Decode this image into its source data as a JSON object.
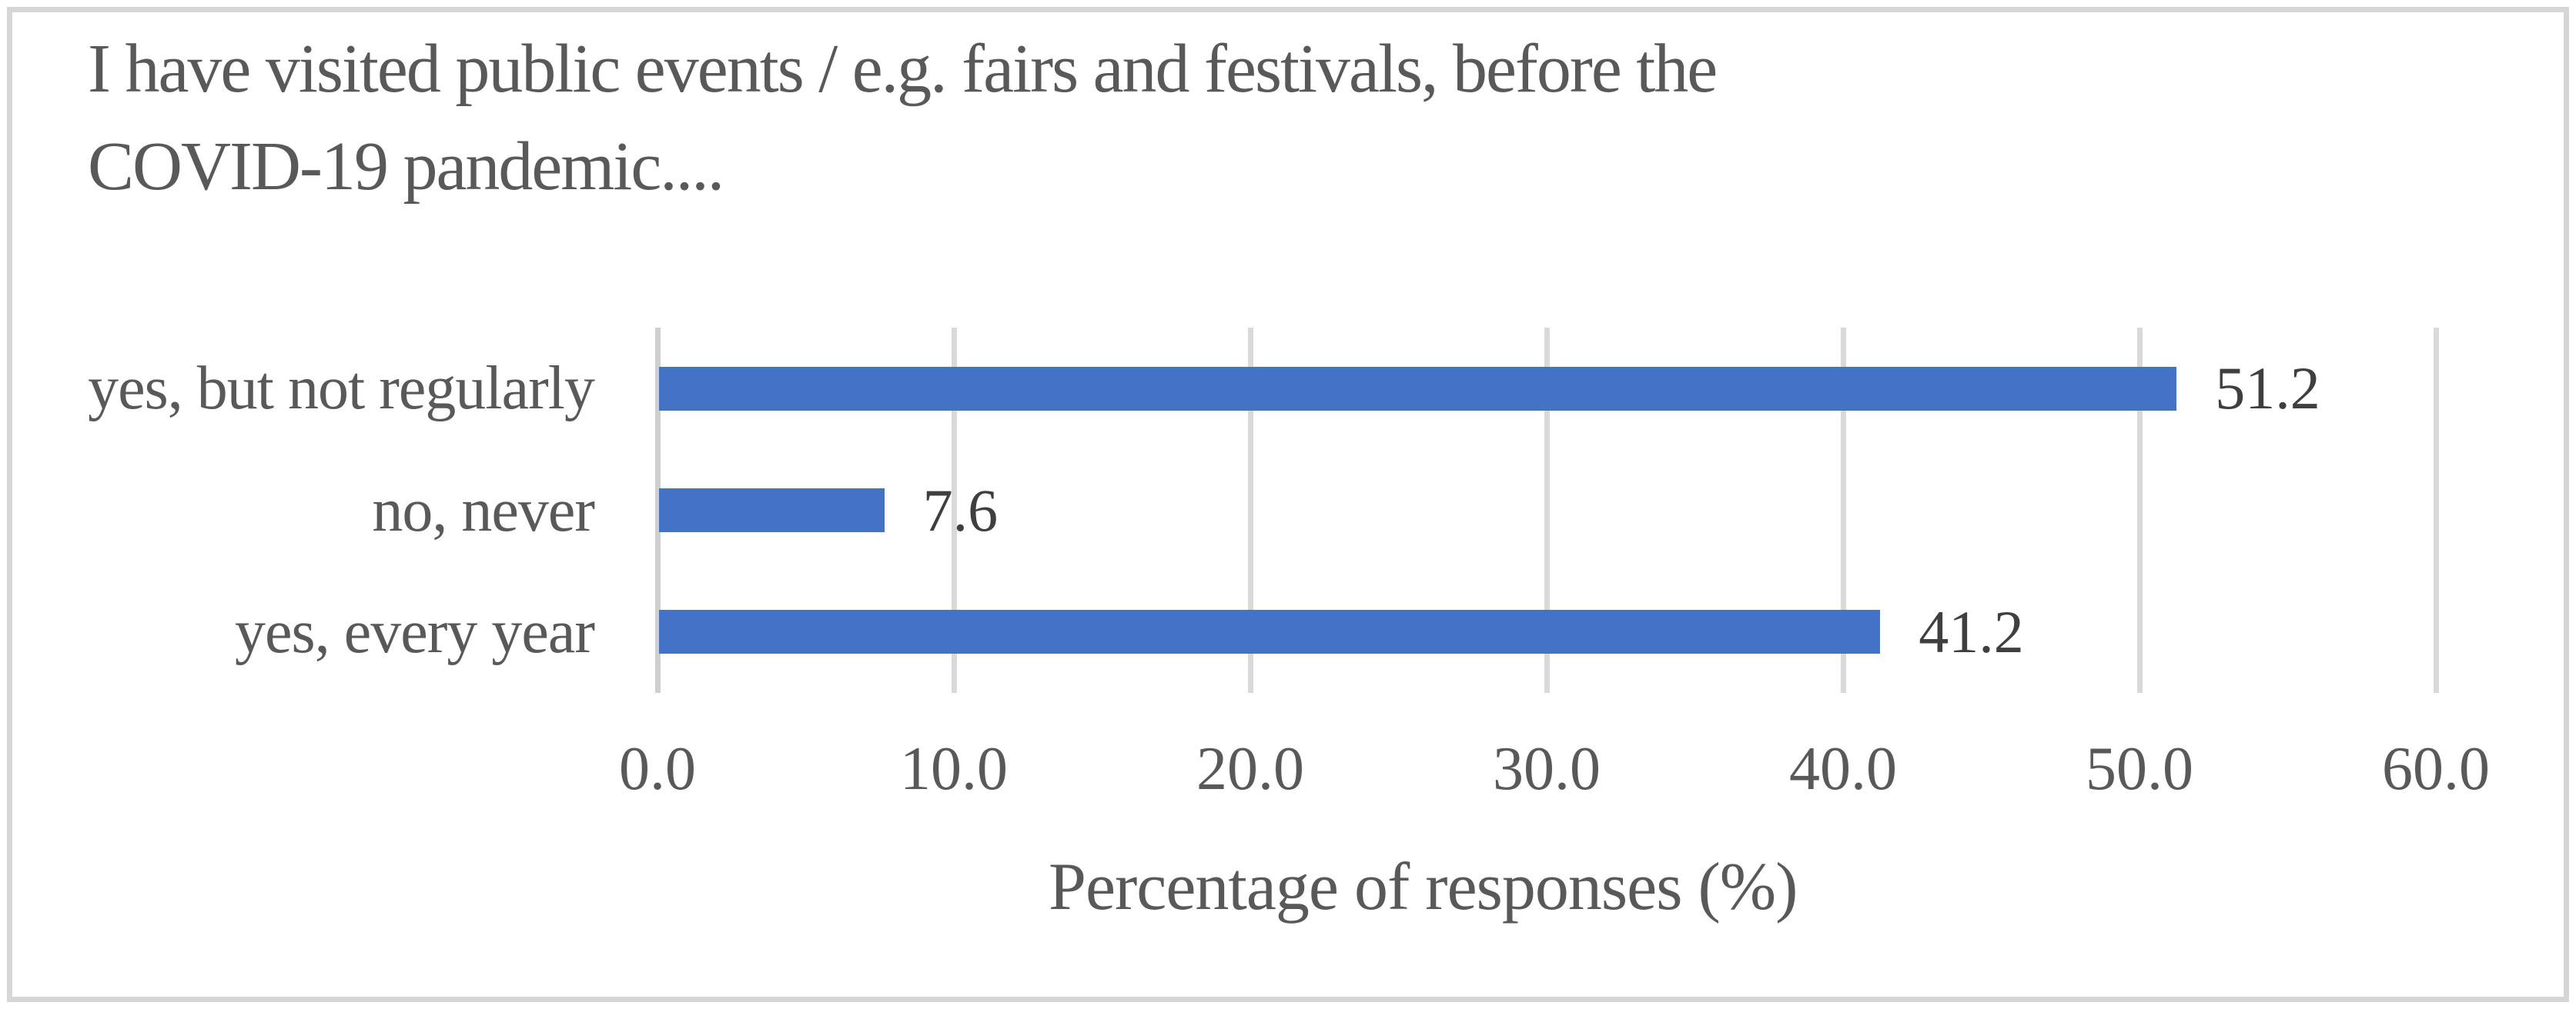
{
  "figure": {
    "title_line1": "I have visited public events / e.g. fairs and festivals, before the",
    "title_line2": "COVID-19 pandemic...."
  },
  "chart_data": {
    "type": "bar",
    "orientation": "horizontal",
    "title": "I have visited public events / e.g. fairs and festivals, before the COVID-19 pandemic....",
    "xlabel": "Percentage of responses (%)",
    "ylabel": "",
    "categories": [
      "yes, but not regularly",
      "no, never",
      "yes, every year"
    ],
    "values": [
      51.2,
      7.6,
      41.2
    ],
    "data_labels": [
      "51.2",
      "7.6",
      "41.2"
    ],
    "xlim": [
      0,
      60
    ],
    "xticks": [
      0,
      10,
      20,
      30,
      40,
      50,
      60
    ],
    "xtick_labels": [
      "0.0",
      "10.0",
      "20.0",
      "30.0",
      "40.0",
      "50.0",
      "60.0"
    ],
    "grid": true,
    "legend": false,
    "colors": {
      "bar": "#4472C4",
      "gridline": "#D9D9D9",
      "axis_line": "#CFCFCF",
      "text": "#595959",
      "data_label": "#3F3F3F",
      "border": "#D6D6D6"
    }
  }
}
